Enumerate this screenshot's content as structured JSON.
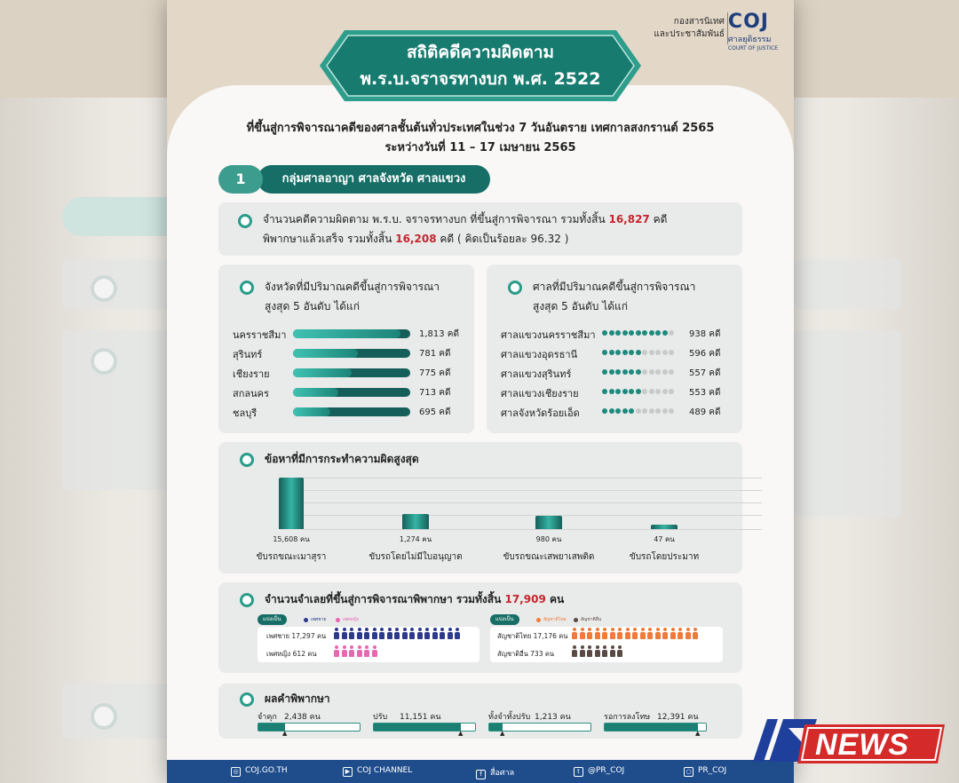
{
  "header": {
    "org_line1": "กองสารนิเทศ",
    "org_line2": "และประชาสัมพันธ์",
    "logo_text": "COJ",
    "logo_sub_th": "ศาลยุติธรรม",
    "logo_sub_en": "COURT OF JUSTICE"
  },
  "title": {
    "line1": "สถิติคดีความผิดตาม",
    "line2": "พ.ร.บ.จราจรทางบก พ.ศ. 2522"
  },
  "subtitle": {
    "line1": "ที่ขึ้นสู่การพิจารณาคดีของศาลชั้นต้นทั่วประเทศในช่วง 7 วันอันตราย เทศกาลสงกรานต์ 2565",
    "line2": "ระหว่างวันที่ 11 – 17 เมษายน 2565"
  },
  "section": {
    "number": "1",
    "label": "กลุ่มศาลอาญา ศาลจังหวัด ศาลแขวง"
  },
  "summary": {
    "text1": "จำนวนคดีความผิดตาม พ.ร.บ. จราจรทางบก ที่ขึ้นสู่การพิจารณา รวมทั้งสิ้น ",
    "total": "16,827",
    "unit1": " คดี",
    "text2": "พิพากษาแล้วเสร็จ รวมทั้งสิ้น ",
    "done": "16,208",
    "unit2": " คดี ( คิดเป็นร้อยละ 96.32 )"
  },
  "provinces": {
    "title1": "จังหวัดที่มีปริมาณคดีขึ้นสู่การพิจารณา",
    "title2": "สูงสุด 5 อันดับ ได้แก่",
    "rows": [
      {
        "name": "นครราชสีมา",
        "value": "1,813 คดี",
        "fraction": 0.92
      },
      {
        "name": "สุรินทร์",
        "value": "781 คดี",
        "fraction": 0.55
      },
      {
        "name": "เชียงราย",
        "value": "775 คดี",
        "fraction": 0.5
      },
      {
        "name": "สกลนคร",
        "value": "713 คดี",
        "fraction": 0.39
      },
      {
        "name": "ชลบุรี",
        "value": "695 คดี",
        "fraction": 0.32
      }
    ]
  },
  "courts": {
    "title1": "ศาลที่มีปริมาณคดีขึ้นสู่การพิจารณา",
    "title2": "สูงสุด 5 อันดับ ได้แก่",
    "rows": [
      {
        "name": "ศาลแขวงนครราชสีมา",
        "value": "938 คดี",
        "filled": 10
      },
      {
        "name": "ศาลแขวงอุดรธานี",
        "value": "596 คดี",
        "filled": 6
      },
      {
        "name": "ศาลแขวงสุรินทร์",
        "value": "557 คดี",
        "filled": 6
      },
      {
        "name": "ศาลแขวงเชียงราย",
        "value": "553 คดี",
        "filled": 6
      },
      {
        "name": "ศาลจังหวัดร้อยเอ็ด",
        "value": "489 คดี",
        "filled": 5
      }
    ],
    "dot_total": 11
  },
  "offences": {
    "title": "ข้อหาที่มีการกระทำความผิดสูงสุด",
    "chart_data": {
      "type": "bar",
      "categories": [
        "ขับรถขณะเมาสุรา",
        "ขับรถโดยไม่มีใบอนุญาต",
        "ขับรถขณะเสพยาเสพติด",
        "ขับรถโดยประมาท"
      ],
      "values": [
        15608,
        1274,
        980,
        47
      ],
      "value_labels": [
        "15,608 คน",
        "1,274 คน",
        "980 คน",
        "47 คน"
      ]
    }
  },
  "defendants": {
    "title_pre": "จำนวนจำเลยที่ขึ้นสู่การพิจารณาพิพากษา รวมทั้งสิ้น ",
    "total": "17,909",
    "title_post": " คน",
    "gender": {
      "legend_label": "แบ่งเป็น",
      "legend_a": "เพศชาย",
      "legend_b": "เพศหญิง",
      "color_a": "#2d3a8c",
      "color_b": "#e868b0",
      "row_a_label": "เพศชาย 17,297 คน",
      "row_b_label": "เพศหญิง 612 คน"
    },
    "nationality": {
      "legend_label": "แบ่งเป็น",
      "legend_a": "สัญชาติไทย",
      "legend_b": "สัญชาติอื่น",
      "color_a": "#f07a3a",
      "color_b": "#5a4a44",
      "row_a_label": "สัญชาติไทย 17,176 คน",
      "row_b_label": "สัญชาติอื่น 733 คน"
    }
  },
  "verdict": {
    "title": "ผลคำพิพากษา",
    "items": [
      {
        "label": "จำคุก",
        "value": "2,438 คน",
        "fraction": 0.26
      },
      {
        "label": "ปรับ",
        "value": "11,151 คน",
        "fraction": 0.86
      },
      {
        "label": "ทั้งจำทั้งปรับ",
        "value": "1,213 คน",
        "fraction": 0.13
      },
      {
        "label": "รอการลงโทษ",
        "value": "12,391 คน",
        "fraction": 0.92
      }
    ]
  },
  "footer": {
    "items": [
      {
        "icon": "web-icon",
        "label": "COJ.GO.TH"
      },
      {
        "icon": "youtube-icon",
        "label": "COJ CHANNEL"
      },
      {
        "icon": "facebook-icon",
        "label": "สื่อศาล"
      },
      {
        "icon": "twitter-icon",
        "label": "@PR_COJ"
      },
      {
        "icon": "instagram-icon",
        "label": "PR_COJ"
      }
    ]
  },
  "watermark": {
    "brand": "NEWS",
    "prefix": "IN"
  },
  "colors": {
    "teal": "#166e66",
    "teal_light": "#3c9d8f",
    "accent_red": "#c4262e",
    "footer_blue": "#1f4d8c"
  }
}
